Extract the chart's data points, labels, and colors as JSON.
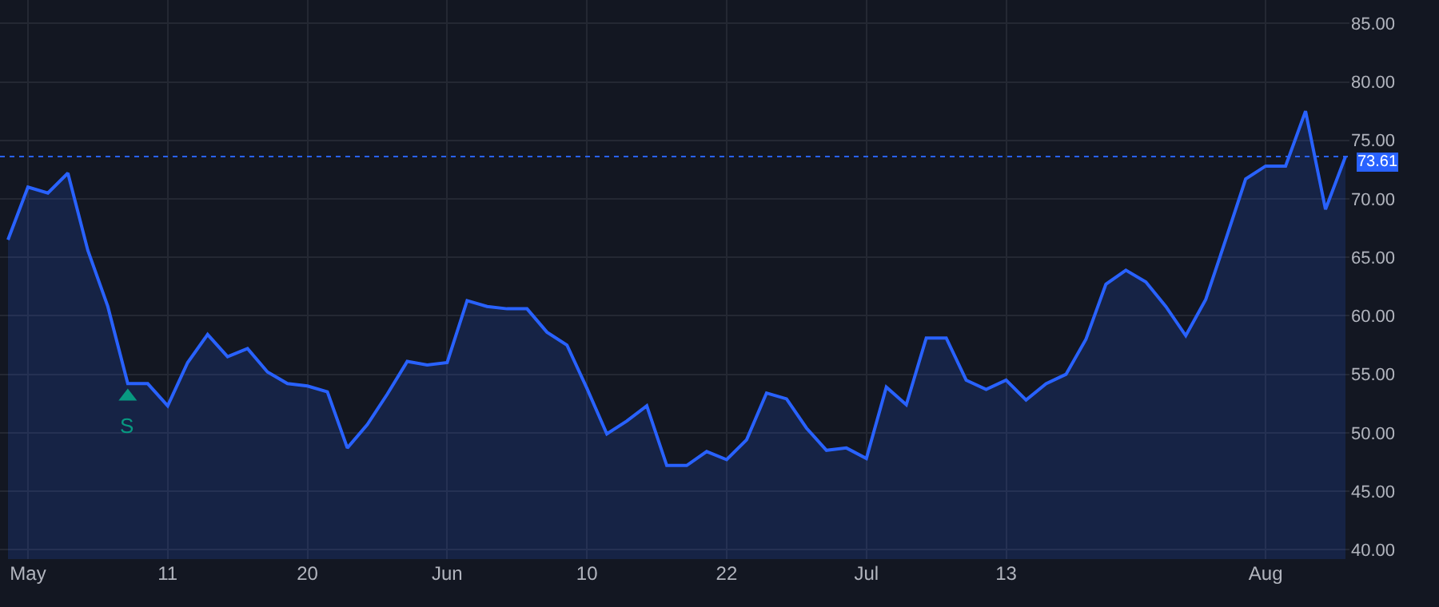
{
  "chart_data": {
    "type": "area",
    "categories": [
      null,
      "May",
      null,
      null,
      null,
      null,
      null,
      null,
      "11",
      null,
      null,
      null,
      null,
      null,
      null,
      "20",
      null,
      null,
      null,
      null,
      null,
      null,
      "Jun",
      null,
      null,
      null,
      null,
      null,
      null,
      "10",
      null,
      null,
      null,
      null,
      null,
      null,
      "22",
      null,
      null,
      null,
      null,
      null,
      null,
      "Jul",
      null,
      null,
      null,
      null,
      null,
      null,
      "13",
      null,
      null,
      null,
      null,
      null,
      null,
      null,
      null,
      null,
      null,
      null,
      null,
      "Aug",
      null,
      null,
      null,
      null
    ],
    "series": [
      {
        "color": "#2962ff",
        "values": [
          66.5,
          71.0,
          70.5,
          72.2,
          65.6,
          60.8,
          54.2,
          54.2,
          52.3,
          56.0,
          58.4,
          56.5,
          57.2,
          55.2,
          54.2,
          54.0,
          53.5,
          48.7,
          50.7,
          53.3,
          56.1,
          55.8,
          56.0,
          61.3,
          60.8,
          60.6,
          60.6,
          58.6,
          57.5,
          53.8,
          49.9,
          51.0,
          52.3,
          47.2,
          47.2,
          48.4,
          47.7,
          49.4,
          53.4,
          52.9,
          50.4,
          48.5,
          48.7,
          47.8,
          53.9,
          52.4,
          58.1,
          58.1,
          54.5,
          53.7,
          54.5,
          52.8,
          54.2,
          55.0,
          58.0,
          62.7,
          63.9,
          62.9,
          60.8,
          58.3,
          61.4,
          66.5,
          71.7,
          72.8,
          72.8,
          77.5,
          69.1,
          73.61
        ]
      },
      {
        "type": "scatter",
        "color": "#089981",
        "marker": "triangle",
        "values": [
          null,
          null,
          null,
          null,
          null,
          null,
          53.1,
          null,
          null,
          null,
          null,
          null,
          null,
          null,
          null,
          null,
          null,
          null,
          null,
          null,
          null,
          null,
          null,
          null,
          null,
          null,
          null,
          null,
          null,
          null,
          null,
          null,
          null,
          null,
          null,
          null,
          null,
          null,
          null,
          null,
          null,
          null,
          null,
          null,
          null,
          null,
          null,
          null,
          null,
          null,
          null,
          null,
          null,
          null,
          null,
          null,
          null,
          null,
          null,
          null,
          null,
          null,
          null,
          null,
          null,
          null,
          null,
          null
        ]
      }
    ],
    "annotations": [
      "S"
    ],
    "ylim": [
      39.2,
      87
    ],
    "yticks": [
      {
        "value": 40,
        "label": "40.00"
      },
      {
        "value": 45,
        "label": "45.00"
      },
      {
        "value": 50,
        "label": "50.00"
      },
      {
        "value": 55,
        "label": "55.00"
      },
      {
        "value": 60,
        "label": "60.00"
      },
      {
        "value": 65,
        "label": "65.00"
      },
      {
        "value": 70,
        "label": "70.00"
      },
      {
        "value": 75,
        "label": "75.00"
      },
      {
        "value": 80,
        "label": "80.00"
      },
      {
        "value": 85,
        "label": "85.00"
      }
    ],
    "ref_lines": [
      {
        "axis": "y",
        "value": 73.61,
        "label": "73.61",
        "color": "#2962ff",
        "line_style": "dotted"
      }
    ],
    "grid": true
  }
}
